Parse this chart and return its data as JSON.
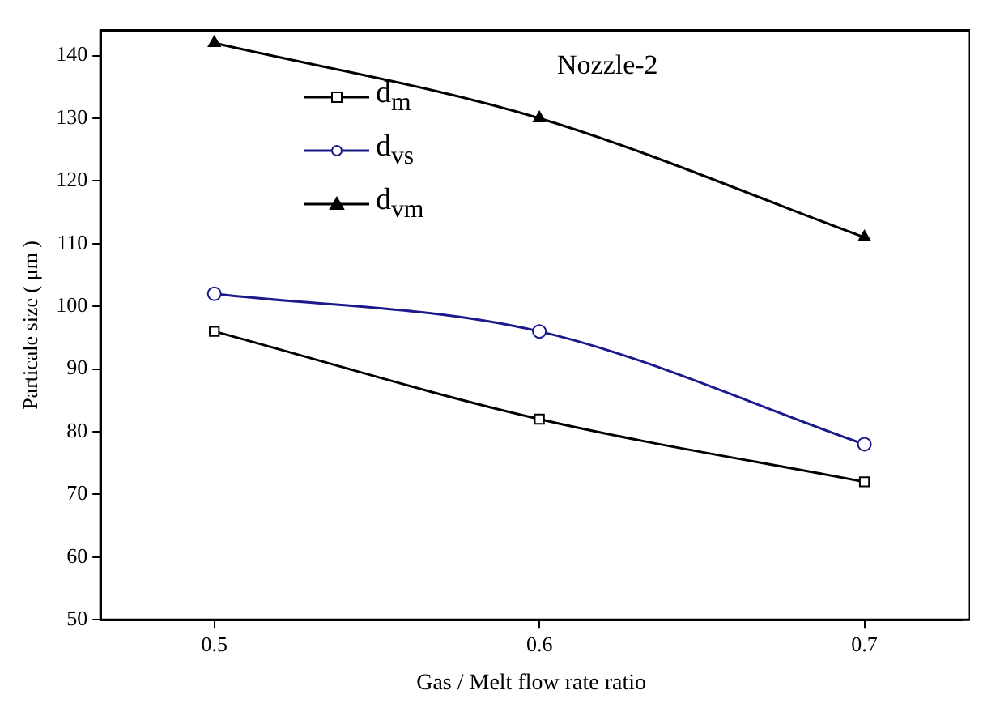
{
  "chart_data": {
    "type": "line",
    "x": [
      0.5,
      0.6,
      0.7
    ],
    "xlabel": "Gas / Melt flow rate ratio",
    "ylabel": "Particale size ( μm )",
    "xlim": [
      0.465,
      0.73
    ],
    "xticks": [
      {
        "value": 0.5,
        "label": "0.5"
      },
      {
        "value": 0.6,
        "label": "0.6"
      },
      {
        "value": 0.7,
        "label": "0.7"
      }
    ],
    "ylim": [
      50,
      144
    ],
    "yticks": [
      50,
      60,
      70,
      80,
      90,
      100,
      110,
      120,
      130,
      140
    ],
    "grid": false,
    "legend": "top left",
    "annotations": [
      "Nozzle-2"
    ],
    "series": [
      {
        "name": "d$_{m}$",
        "color": "#000000",
        "marker": "square",
        "values": [
          96,
          82,
          72
        ]
      },
      {
        "name": "d$_{vs}$",
        "color": "#1a1a8c",
        "marker": "circle",
        "values": [
          102,
          96,
          78
        ]
      },
      {
        "name": "d$_{vm}$",
        "color": "#000000",
        "marker": "triangle",
        "values": [
          142,
          130,
          111
        ]
      }
    ]
  }
}
